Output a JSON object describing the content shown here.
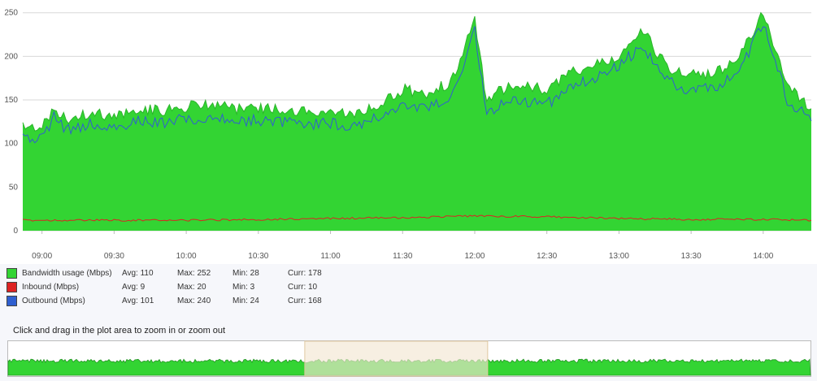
{
  "chart_data": {
    "type": "area",
    "title": "",
    "xlabel": "",
    "ylabel": "",
    "ylim": [
      0,
      260
    ],
    "y_ticks": [
      "0",
      "50",
      "100",
      "150",
      "200",
      "250"
    ],
    "x_ticks": [
      "09:00",
      "09:30",
      "10:00",
      "10:30",
      "11:00",
      "11:30",
      "12:00",
      "12:30",
      "13:00",
      "13:30",
      "14:00"
    ],
    "grid": true,
    "x_start": "08:52",
    "x_end": "14:20",
    "series": [
      {
        "name": "Bandwidth usage (Mbps)",
        "color": "#33d433",
        "avg": "Avg: 110",
        "max": "Max: 252",
        "min": "Min: 28",
        "curr": "Curr: 178",
        "points": [
          [
            "08:52",
            120
          ],
          [
            "09:00",
            118
          ],
          [
            "09:05",
            140
          ],
          [
            "09:10",
            128
          ],
          [
            "09:20",
            135
          ],
          [
            "09:30",
            132
          ],
          [
            "09:40",
            140
          ],
          [
            "09:50",
            138
          ],
          [
            "10:00",
            142
          ],
          [
            "10:10",
            145
          ],
          [
            "10:20",
            140
          ],
          [
            "10:30",
            141
          ],
          [
            "10:40",
            138
          ],
          [
            "10:50",
            136
          ],
          [
            "11:00",
            137
          ],
          [
            "11:10",
            135
          ],
          [
            "11:20",
            145
          ],
          [
            "11:30",
            162
          ],
          [
            "11:40",
            158
          ],
          [
            "11:50",
            170
          ],
          [
            "12:00",
            240
          ],
          [
            "12:05",
            150
          ],
          [
            "12:15",
            168
          ],
          [
            "12:30",
            162
          ],
          [
            "12:40",
            182
          ],
          [
            "12:50",
            190
          ],
          [
            "13:00",
            202
          ],
          [
            "13:10",
            228
          ],
          [
            "13:20",
            188
          ],
          [
            "13:30",
            178
          ],
          [
            "13:40",
            182
          ],
          [
            "13:50",
            198
          ],
          [
            "14:00",
            252
          ],
          [
            "14:10",
            165
          ],
          [
            "14:20",
            140
          ]
        ]
      },
      {
        "name": "Inbound (Mbps)",
        "color": "#dd2222",
        "avg": "Avg: 9",
        "max": "Max: 20",
        "min": "Min: 3",
        "curr": "Curr: 10",
        "points": [
          [
            "08:52",
            12
          ],
          [
            "09:30",
            12
          ],
          [
            "10:00",
            12
          ],
          [
            "10:30",
            13
          ],
          [
            "11:00",
            14
          ],
          [
            "11:30",
            15
          ],
          [
            "12:00",
            17
          ],
          [
            "12:30",
            16
          ],
          [
            "13:00",
            14
          ],
          [
            "13:30",
            13
          ],
          [
            "14:00",
            13
          ],
          [
            "14:20",
            12
          ]
        ]
      },
      {
        "name": "Outbound (Mbps)",
        "color": "#2f5fd0",
        "avg": "Avg: 101",
        "max": "Max: 240",
        "min": "Min: 24",
        "curr": "Curr: 168",
        "points": [
          [
            "08:52",
            108
          ],
          [
            "09:00",
            105
          ],
          [
            "09:05",
            130
          ],
          [
            "09:10",
            115
          ],
          [
            "09:20",
            122
          ],
          [
            "09:30",
            118
          ],
          [
            "09:40",
            125
          ],
          [
            "09:50",
            124
          ],
          [
            "10:00",
            128
          ],
          [
            "10:10",
            130
          ],
          [
            "10:20",
            126
          ],
          [
            "10:30",
            127
          ],
          [
            "10:40",
            124
          ],
          [
            "10:50",
            122
          ],
          [
            "11:00",
            123
          ],
          [
            "11:10",
            120
          ],
          [
            "11:20",
            130
          ],
          [
            "11:30",
            145
          ],
          [
            "11:40",
            140
          ],
          [
            "11:50",
            152
          ],
          [
            "12:00",
            228
          ],
          [
            "12:05",
            135
          ],
          [
            "12:15",
            150
          ],
          [
            "12:30",
            145
          ],
          [
            "12:40",
            165
          ],
          [
            "12:50",
            175
          ],
          [
            "13:00",
            190
          ],
          [
            "13:10",
            212
          ],
          [
            "13:20",
            172
          ],
          [
            "13:30",
            160
          ],
          [
            "13:40",
            165
          ],
          [
            "13:50",
            180
          ],
          [
            "14:00",
            240
          ],
          [
            "14:10",
            150
          ],
          [
            "14:20",
            126
          ]
        ]
      }
    ]
  },
  "zoom_hint": "Click and drag in the plot area to zoom in or zoom out",
  "overview": {
    "x_start": "00:00",
    "x_end": "23:59",
    "selection_start": "08:52",
    "selection_end": "14:20",
    "selection_color": "#f3e6d2"
  }
}
